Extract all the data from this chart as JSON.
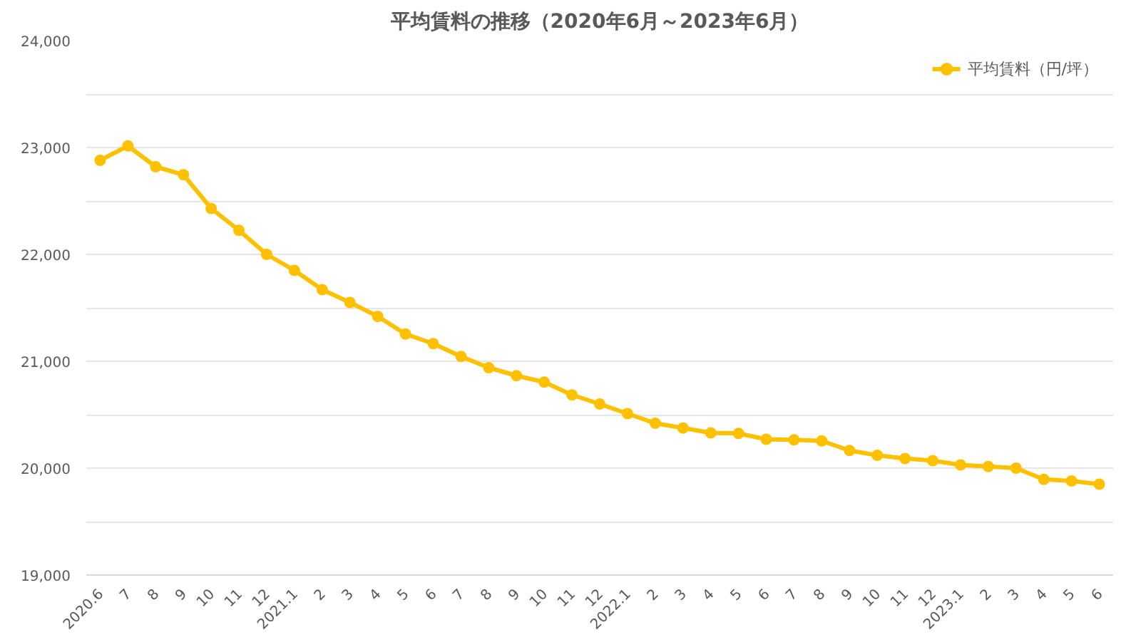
{
  "chart_data": {
    "type": "line",
    "title": "平均賃料の推移（2020年6月～2023年6月）",
    "categories": [
      "2020.6",
      "7",
      "8",
      "9",
      "10",
      "11",
      "12",
      "2021.1",
      "2",
      "3",
      "4",
      "5",
      "6",
      "7",
      "8",
      "9",
      "10",
      "11",
      "12",
      "2022.1",
      "2",
      "3",
      "4",
      "5",
      "6",
      "7",
      "8",
      "9",
      "10",
      "11",
      "12",
      "2023.1",
      "2",
      "3",
      "4",
      "5",
      "6"
    ],
    "series": [
      {
        "name": "平均賃料（円/坪）",
        "color": "#ffc000",
        "values": [
          22880,
          23015,
          22820,
          22745,
          22430,
          22225,
          22000,
          21850,
          21670,
          21550,
          21420,
          21255,
          21165,
          21045,
          20940,
          20865,
          20805,
          20685,
          20600,
          20510,
          20420,
          20375,
          20330,
          20325,
          20270,
          20265,
          20255,
          20165,
          20120,
          20090,
          20070,
          20030,
          20015,
          20000,
          19895,
          19880,
          19850
        ]
      }
    ],
    "ylim": [
      19000,
      24000
    ],
    "yticks": [
      {
        "value": 19000,
        "label": "19,000"
      },
      {
        "value": 19500,
        "label": null
      },
      {
        "value": 20000,
        "label": "20,000"
      },
      {
        "value": 20500,
        "label": null
      },
      {
        "value": 21000,
        "label": "21,000"
      },
      {
        "value": 21500,
        "label": null
      },
      {
        "value": 22000,
        "label": "22,000"
      },
      {
        "value": 22500,
        "label": null
      },
      {
        "value": 23000,
        "label": "23,000"
      },
      {
        "value": 23500,
        "label": null
      },
      {
        "value": 24000,
        "label": "24,000"
      }
    ],
    "grid": "y",
    "legend": "top right",
    "marker": "circle",
    "line_style": "solid"
  }
}
